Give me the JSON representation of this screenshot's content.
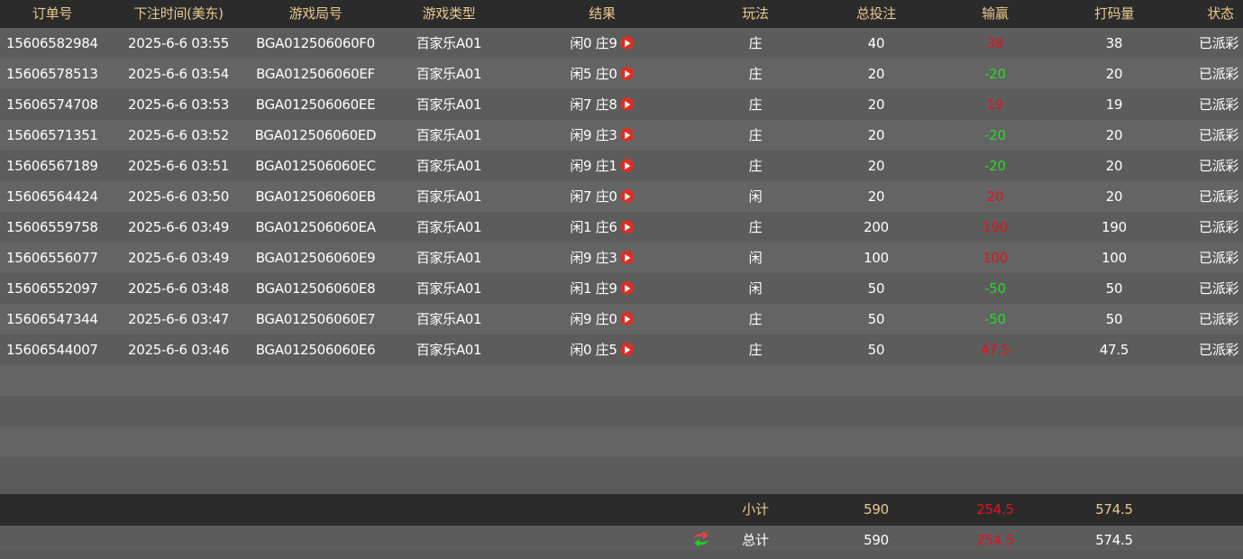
{
  "headers": [
    "订单号",
    "下注时间(美东)",
    "游戏局号",
    "游戏类型",
    "结果",
    "玩法",
    "总投注",
    "输赢",
    "打码量",
    "状态"
  ],
  "rows": [
    [
      "15606582984",
      "2025-6-6 03:55",
      "BGA012506060F0",
      "百家乐A01",
      "闲0 庄9",
      "庄",
      "40",
      "38",
      "38",
      "已派彩"
    ],
    [
      "15606578513",
      "2025-6-6 03:54",
      "BGA012506060EF",
      "百家乐A01",
      "闲5 庄0",
      "庄",
      "20",
      "-20",
      "20",
      "已派彩"
    ],
    [
      "15606574708",
      "2025-6-6 03:53",
      "BGA012506060EE",
      "百家乐A01",
      "闲7 庄8",
      "庄",
      "20",
      "19",
      "19",
      "已派彩"
    ],
    [
      "15606571351",
      "2025-6-6 03:52",
      "BGA012506060ED",
      "百家乐A01",
      "闲9 庄3",
      "庄",
      "20",
      "-20",
      "20",
      "已派彩"
    ],
    [
      "15606567189",
      "2025-6-6 03:51",
      "BGA012506060EC",
      "百家乐A01",
      "闲9 庄1",
      "庄",
      "20",
      "-20",
      "20",
      "已派彩"
    ],
    [
      "15606564424",
      "2025-6-6 03:50",
      "BGA012506060EB",
      "百家乐A01",
      "闲7 庄0",
      "闲",
      "20",
      "20",
      "20",
      "已派彩"
    ],
    [
      "15606559758",
      "2025-6-6 03:49",
      "BGA012506060EA",
      "百家乐A01",
      "闲1 庄6",
      "庄",
      "200",
      "190",
      "190",
      "已派彩"
    ],
    [
      "15606556077",
      "2025-6-6 03:49",
      "BGA012506060E9",
      "百家乐A01",
      "闲9 庄3",
      "闲",
      "100",
      "100",
      "100",
      "已派彩"
    ],
    [
      "15606552097",
      "2025-6-6 03:48",
      "BGA012506060E8",
      "百家乐A01",
      "闲1 庄9",
      "闲",
      "50",
      "-50",
      "50",
      "已派彩"
    ],
    [
      "15606547344",
      "2025-6-6 03:47",
      "BGA012506060E7",
      "百家乐A01",
      "闲9 庄0",
      "庄",
      "50",
      "-50",
      "50",
      "已派彩"
    ],
    [
      "15606544007",
      "2025-6-6 03:46",
      "BGA012506060E6",
      "百家乐A01",
      "闲0 庄5",
      "庄",
      "50",
      "47.5",
      "47.5",
      "已派彩"
    ]
  ],
  "subtotal": {
    "label": "小计",
    "bet": "590",
    "win": "254.5",
    "turnover": "574.5"
  },
  "total": {
    "label": "总计",
    "bet": "590",
    "win": "254.5",
    "turnover": "574.5"
  },
  "icons": {
    "result": "play-icon",
    "refresh": "refresh-icon"
  },
  "colors": {
    "win": "#e0141e",
    "loss": "#22dd22",
    "header_text": "#e8c98f"
  }
}
